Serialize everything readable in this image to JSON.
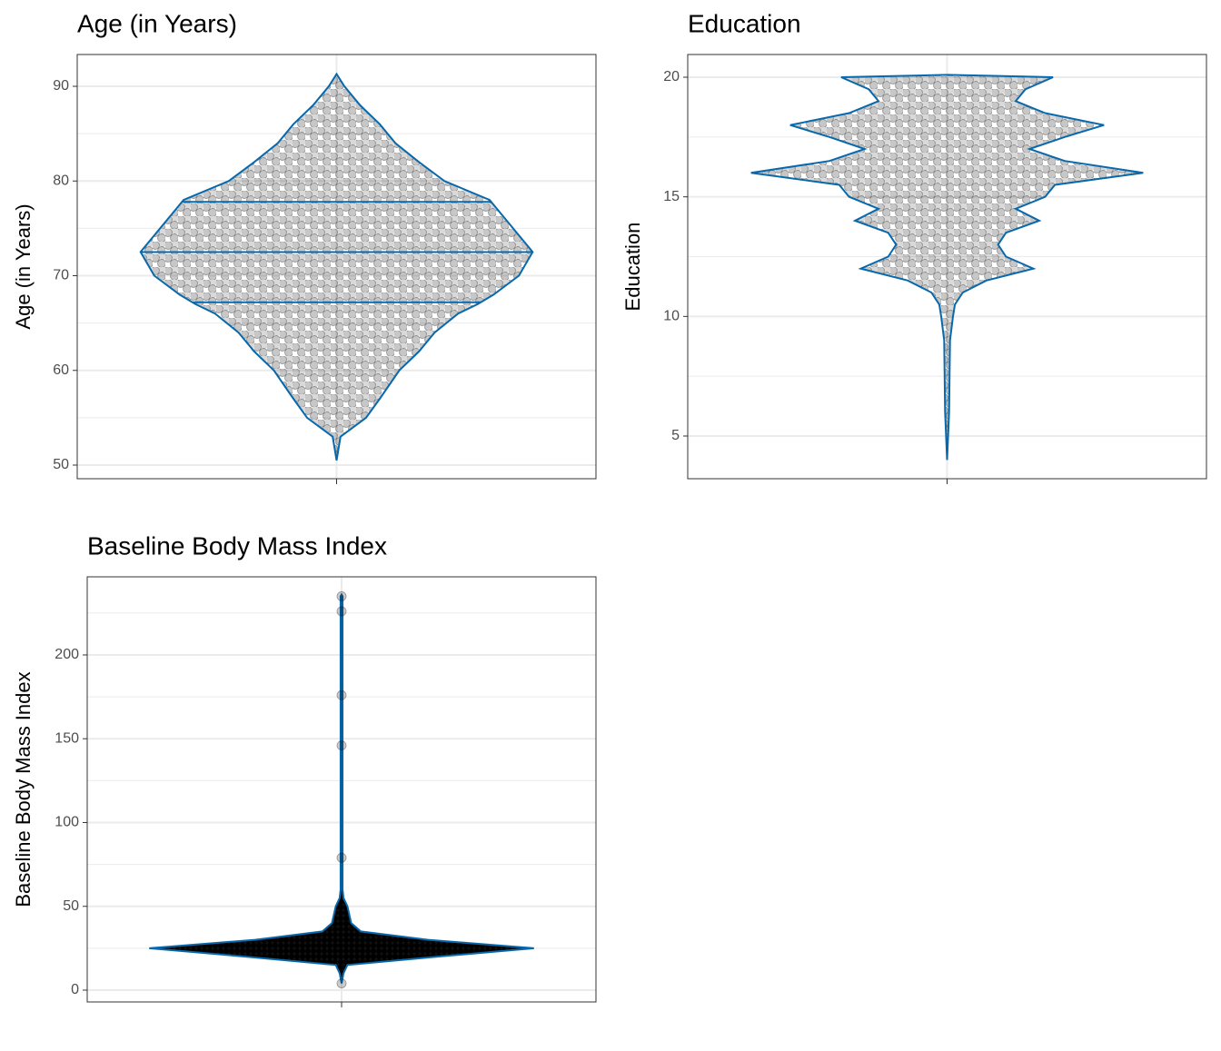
{
  "chart_data": [
    {
      "type": "violin",
      "title": "Age (in Years)",
      "y_label": "Age (in Years)",
      "color": "#0868ac",
      "ylim": [
        48.56,
        93.36
      ],
      "yticks": [
        50,
        60,
        70,
        80,
        90
      ],
      "grid": true,
      "density": {
        "y": [
          50.5,
          53,
          55,
          57,
          60,
          62,
          64,
          66,
          67,
          68,
          70,
          72.5,
          75,
          77,
          78,
          80,
          82,
          84,
          86,
          88,
          90,
          91.3
        ],
        "width": [
          0,
          0.02,
          0.15,
          0.22,
          0.32,
          0.42,
          0.5,
          0.62,
          0.72,
          0.8,
          0.93,
          1.0,
          0.9,
          0.82,
          0.78,
          0.55,
          0.42,
          0.3,
          0.22,
          0.12,
          0.04,
          0
        ]
      },
      "quantiles": [
        67.2,
        72.5,
        77.8
      ]
    },
    {
      "type": "violin",
      "title": "Education",
      "y_label": "Education",
      "color": "#0868ac",
      "ylim": [
        3.215,
        20.95
      ],
      "yticks": [
        5,
        10,
        15,
        20
      ],
      "grid": true,
      "density": {
        "y": [
          4,
          6,
          9,
          10,
          10.5,
          11,
          11.5,
          12,
          12.5,
          13,
          13.5,
          14,
          14.5,
          15,
          15.5,
          16,
          16.5,
          17,
          17.5,
          18,
          18.5,
          19,
          19.5,
          20,
          20.1
        ],
        "width": [
          0,
          0.01,
          0.015,
          0.03,
          0.04,
          0.08,
          0.2,
          0.44,
          0.3,
          0.26,
          0.3,
          0.47,
          0.35,
          0.5,
          0.55,
          1.0,
          0.6,
          0.42,
          0.6,
          0.8,
          0.5,
          0.35,
          0.4,
          0.54,
          0
        ]
      }
    },
    {
      "type": "violin",
      "title": "Baseline Body Mass Index",
      "y_label": "Baseline Body Mass Index",
      "color": "#0868ac",
      "ylim": [
        -7.05,
        246.6
      ],
      "yticks": [
        0,
        50,
        100,
        150,
        200
      ],
      "grid": true,
      "density": {
        "y": [
          4,
          10,
          15,
          20,
          25,
          30,
          35,
          40,
          50,
          55,
          60,
          235,
          236
        ],
        "width": [
          0,
          0.01,
          0.03,
          0.5,
          1.0,
          0.45,
          0.1,
          0.05,
          0.03,
          0.01,
          0.005,
          0.005,
          0
        ]
      },
      "outliers": [
        235,
        226,
        176,
        146,
        79,
        4
      ]
    }
  ]
}
